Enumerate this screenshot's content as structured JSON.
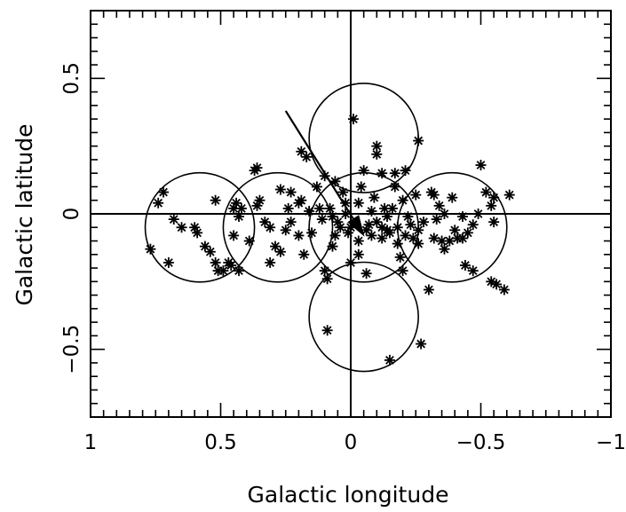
{
  "chart_data": {
    "type": "scatter",
    "title": "",
    "xlabel": "Galactic longitude",
    "ylabel": "Galactic latitude",
    "xlim": [
      1,
      -1
    ],
    "ylim": [
      -0.75,
      0.75
    ],
    "x_ticks": [
      1,
      0.5,
      0,
      -0.5,
      -1
    ],
    "y_ticks": [
      0.5,
      0,
      -0.5
    ],
    "x_tick_labels": [
      "1",
      "0.5",
      "0",
      "−0.5",
      "−1"
    ],
    "y_tick_labels": [
      "0.5",
      "0",
      "−0.5"
    ],
    "zero_lines": true,
    "marker": "asterisk",
    "circle_radius": 0.21,
    "fields": [
      {
        "l": 0.58,
        "b": -0.05
      },
      {
        "l": 0.28,
        "b": -0.05
      },
      {
        "l": -0.05,
        "b": -0.05
      },
      {
        "l": -0.39,
        "b": -0.05
      },
      {
        "l": -0.05,
        "b": 0.28
      },
      {
        "l": -0.05,
        "b": -0.38
      }
    ],
    "arrow": {
      "from": [
        0.25,
        0.38
      ],
      "to": [
        -0.05,
        -0.08
      ]
    },
    "points": [
      [
        0.72,
        0.08
      ],
      [
        0.74,
        0.04
      ],
      [
        0.68,
        -0.02
      ],
      [
        0.6,
        -0.05
      ],
      [
        0.59,
        -0.07
      ],
      [
        0.77,
        -0.13
      ],
      [
        0.7,
        -0.18
      ],
      [
        0.56,
        -0.12
      ],
      [
        0.54,
        -0.14
      ],
      [
        0.52,
        -0.18
      ],
      [
        0.51,
        -0.21
      ],
      [
        0.49,
        -0.21
      ],
      [
        0.47,
        -0.18
      ],
      [
        0.46,
        -0.19
      ],
      [
        0.43,
        -0.21
      ],
      [
        0.45,
        -0.08
      ],
      [
        0.52,
        0.05
      ],
      [
        0.44,
        0.04
      ],
      [
        0.42,
        0.02
      ],
      [
        0.43,
        -0.01
      ],
      [
        0.37,
        0.16
      ],
      [
        0.36,
        0.17
      ],
      [
        0.35,
        0.05
      ],
      [
        0.33,
        -0.03
      ],
      [
        0.31,
        -0.05
      ],
      [
        0.29,
        -0.12
      ],
      [
        0.31,
        -0.18
      ],
      [
        0.27,
        -0.14
      ],
      [
        0.25,
        -0.06
      ],
      [
        0.27,
        0.09
      ],
      [
        0.24,
        0.02
      ],
      [
        0.2,
        0.04
      ],
      [
        0.19,
        0.05
      ],
      [
        0.19,
        0.23
      ],
      [
        0.17,
        0.21
      ],
      [
        0.2,
        -0.08
      ],
      [
        0.18,
        -0.15
      ],
      [
        0.15,
        -0.07
      ],
      [
        0.13,
        0.1
      ],
      [
        0.12,
        0.02
      ],
      [
        0.1,
        0.14
      ],
      [
        0.08,
        0.02
      ],
      [
        0.07,
        -0.01
      ],
      [
        0.05,
        -0.03
      ],
      [
        0.04,
        -0.05
      ],
      [
        0.03,
        0.08
      ],
      [
        0.02,
        0.04
      ],
      [
        0.02,
        0.0
      ],
      [
        0.01,
        -0.07
      ],
      [
        0.0,
        -0.05
      ],
      [
        -0.01,
        0.35
      ],
      [
        -0.03,
        0.04
      ],
      [
        -0.03,
        -0.1
      ],
      [
        -0.05,
        0.16
      ],
      [
        -0.06,
        -0.06
      ],
      [
        -0.07,
        -0.04
      ],
      [
        -0.08,
        -0.08
      ],
      [
        -0.08,
        0.01
      ],
      [
        -0.1,
        0.25
      ],
      [
        -0.1,
        0.22
      ],
      [
        -0.1,
        -0.03
      ],
      [
        -0.12,
        0.15
      ],
      [
        -0.12,
        -0.09
      ],
      [
        -0.13,
        0.02
      ],
      [
        -0.14,
        -0.06
      ],
      [
        -0.15,
        -0.07
      ],
      [
        -0.16,
        0.02
      ],
      [
        -0.17,
        0.1
      ],
      [
        -0.17,
        0.15
      ],
      [
        -0.18,
        -0.05
      ],
      [
        -0.18,
        -0.11
      ],
      [
        -0.19,
        -0.16
      ],
      [
        -0.2,
        -0.21
      ],
      [
        -0.21,
        0.16
      ],
      [
        -0.21,
        -0.08
      ],
      [
        -0.23,
        -0.04
      ],
      [
        -0.24,
        -0.09
      ],
      [
        -0.25,
        0.07
      ],
      [
        -0.26,
        0.27
      ],
      [
        -0.26,
        -0.11
      ],
      [
        -0.27,
        -0.48
      ],
      [
        -0.15,
        -0.54
      ],
      [
        -0.06,
        -0.22
      ],
      [
        0.1,
        -0.21
      ],
      [
        0.09,
        -0.24
      ],
      [
        0.09,
        -0.43
      ],
      [
        -0.03,
        -0.15
      ],
      [
        0.0,
        -0.18
      ],
      [
        0.06,
        -0.08
      ],
      [
        0.07,
        -0.12
      ],
      [
        -0.32,
        -0.09
      ],
      [
        -0.31,
        0.08
      ],
      [
        -0.32,
        0.07
      ],
      [
        -0.33,
        -0.02
      ],
      [
        -0.35,
        -0.1
      ],
      [
        -0.36,
        -0.13
      ],
      [
        -0.38,
        -0.1
      ],
      [
        -0.39,
        0.06
      ],
      [
        -0.4,
        -0.06
      ],
      [
        -0.41,
        -0.09
      ],
      [
        -0.43,
        -0.09
      ],
      [
        -0.44,
        -0.19
      ],
      [
        -0.47,
        -0.21
      ],
      [
        -0.47,
        -0.04
      ],
      [
        -0.49,
        0.0
      ],
      [
        -0.5,
        0.18
      ],
      [
        -0.52,
        0.08
      ],
      [
        -0.54,
        0.03
      ],
      [
        -0.55,
        -0.03
      ],
      [
        -0.55,
        0.06
      ],
      [
        -0.54,
        -0.25
      ],
      [
        -0.56,
        -0.26
      ],
      [
        -0.61,
        0.07
      ],
      [
        -0.59,
        -0.28
      ],
      [
        -0.3,
        -0.28
      ],
      [
        -0.36,
        0.0
      ],
      [
        -0.12,
        -0.05
      ],
      [
        -0.14,
        -0.01
      ],
      [
        -0.22,
        -0.01
      ],
      [
        -0.28,
        -0.03
      ],
      [
        0.16,
        0.01
      ],
      [
        0.06,
        0.12
      ],
      [
        0.11,
        -0.02
      ],
      [
        -0.04,
        0.1
      ],
      [
        -0.09,
        0.06
      ],
      [
        -0.2,
        0.05
      ],
      [
        -0.34,
        0.03
      ],
      [
        -0.26,
        -0.06
      ],
      [
        -0.43,
        -0.01
      ],
      [
        -0.45,
        -0.07
      ],
      [
        0.39,
        -0.1
      ],
      [
        0.36,
        0.03
      ],
      [
        0.23,
        0.08
      ],
      [
        0.23,
        -0.03
      ],
      [
        0.45,
        0.02
      ],
      [
        0.65,
        -0.05
      ]
    ]
  }
}
